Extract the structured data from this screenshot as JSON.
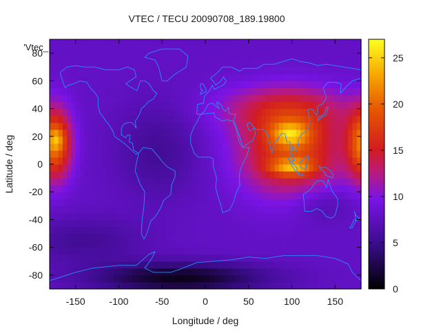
{
  "chart_data": {
    "type": "heatmap",
    "title": "VTEC / TECU 20090708_189.19800",
    "series_label": "'Vtec_",
    "xlabel": "Longitude / deg",
    "ylabel": "Latitude / deg",
    "xlim": [
      -180,
      180
    ],
    "ylim": [
      -90,
      90
    ],
    "xticks": [
      -150,
      -100,
      -50,
      0,
      50,
      100,
      150
    ],
    "yticks": [
      -80,
      -60,
      -40,
      -20,
      0,
      20,
      40,
      60,
      80
    ],
    "colorbar": {
      "range": [
        0,
        27
      ],
      "ticks": [
        0,
        5,
        10,
        15,
        20,
        25
      ],
      "palette": "black-purple-red-orange-yellow"
    },
    "background_level": 8,
    "grid_resolution_deg": 5,
    "features": [
      {
        "name": "east-hemisphere-crest",
        "lon": 100,
        "lat": 10,
        "lon_sigma": 42,
        "lat_sigma": 22,
        "amplitude": 10
      },
      {
        "name": "north-crest",
        "lon": 98,
        "lat": 22,
        "lon_sigma": 15,
        "lat_sigma": 6,
        "amplitude": 8
      },
      {
        "name": "south-crest",
        "lon": 100,
        "lat": -2,
        "lon_sigma": 18,
        "lat_sigma": 4,
        "amplitude": 8
      },
      {
        "name": "midlat-band",
        "lon": 90,
        "lat": 40,
        "lon_sigma": 55,
        "lat_sigma": 12,
        "amplitude": 5
      },
      {
        "name": "pacific-crest",
        "lon": -175,
        "lat": 15,
        "lon_sigma": 14,
        "lat_sigma": 18,
        "amplitude": 13
      },
      {
        "name": "pacific-crest-wrap",
        "lon": 185,
        "lat": 15,
        "lon_sigma": 14,
        "lat_sigma": 18,
        "amplitude": 13
      },
      {
        "name": "pacific-peak",
        "lon": -172,
        "lat": 18,
        "lon_sigma": 6,
        "lat_sigma": 5,
        "amplitude": 4
      },
      {
        "name": "antarctic-low",
        "lon": -30,
        "lat": -82,
        "lon_sigma": 70,
        "lat_sigma": 8,
        "amplitude": -7
      },
      {
        "name": "south-pacific-low",
        "lon": -140,
        "lat": -55,
        "lon_sigma": 50,
        "lat_sigma": 12,
        "amplitude": -2.5
      },
      {
        "name": "america-dark",
        "lon": -55,
        "lat": 10,
        "lon_sigma": 35,
        "lat_sigma": 25,
        "amplitude": -2.5
      },
      {
        "name": "australia-dip",
        "lon": 135,
        "lat": -28,
        "lon_sigma": 25,
        "lat_sigma": 10,
        "amplitude": -2
      }
    ],
    "coastlines": [
      [
        [
          -168,
          66
        ],
        [
          -160,
          70
        ],
        [
          -150,
          71
        ],
        [
          -140,
          70
        ],
        [
          -128,
          70
        ],
        [
          -115,
          68
        ],
        [
          -100,
          68
        ],
        [
          -90,
          70
        ],
        [
          -82,
          68
        ],
        [
          -80,
          63
        ],
        [
          -92,
          58
        ],
        [
          -85,
          55
        ],
        [
          -79,
          53
        ],
        [
          -75,
          60
        ],
        [
          -70,
          60
        ],
        [
          -65,
          58
        ],
        [
          -60,
          53
        ],
        [
          -56,
          51
        ],
        [
          -60,
          47
        ],
        [
          -66,
          45
        ],
        [
          -70,
          42
        ],
        [
          -74,
          40
        ],
        [
          -76,
          36
        ],
        [
          -81,
          31
        ],
        [
          -80,
          26
        ],
        [
          -82,
          28
        ],
        [
          -85,
          30
        ],
        [
          -89,
          30
        ],
        [
          -94,
          29
        ],
        [
          -97,
          26
        ],
        [
          -97,
          21
        ],
        [
          -92,
          19
        ],
        [
          -90,
          21
        ],
        [
          -87,
          21
        ],
        [
          -88,
          16
        ],
        [
          -84,
          15
        ],
        [
          -83,
          10
        ],
        [
          -80,
          9
        ],
        [
          -78,
          8
        ],
        [
          -80,
          7
        ],
        [
          -85,
          10
        ],
        [
          -92,
          14
        ],
        [
          -96,
          16
        ],
        [
          -105,
          20
        ],
        [
          -107,
          24
        ],
        [
          -112,
          29
        ],
        [
          -115,
          31
        ],
        [
          -117,
          33
        ],
        [
          -122,
          37
        ],
        [
          -124,
          42
        ],
        [
          -124,
          48
        ],
        [
          -127,
          51
        ],
        [
          -133,
          55
        ],
        [
          -137,
          59
        ],
        [
          -145,
          60
        ],
        [
          -152,
          58
        ],
        [
          -158,
          57
        ],
        [
          -162,
          55
        ],
        [
          -165,
          60
        ],
        [
          -168,
          66
        ]
      ],
      [
        [
          -77,
          8
        ],
        [
          -72,
          12
        ],
        [
          -62,
          11
        ],
        [
          -55,
          6
        ],
        [
          -50,
          2
        ],
        [
          -44,
          -2
        ],
        [
          -35,
          -5
        ],
        [
          -35,
          -9
        ],
        [
          -39,
          -15
        ],
        [
          -40,
          -22
        ],
        [
          -48,
          -26
        ],
        [
          -52,
          -32
        ],
        [
          -58,
          -38
        ],
        [
          -63,
          -41
        ],
        [
          -66,
          -47
        ],
        [
          -69,
          -52
        ],
        [
          -71,
          -54
        ],
        [
          -74,
          -50
        ],
        [
          -73,
          -40
        ],
        [
          -71,
          -30
        ],
        [
          -70,
          -20
        ],
        [
          -75,
          -15
        ],
        [
          -81,
          -5
        ],
        [
          -80,
          0
        ],
        [
          -77,
          8
        ]
      ],
      [
        [
          -50,
          60
        ],
        [
          -44,
          60
        ],
        [
          -35,
          65
        ],
        [
          -22,
          70
        ],
        [
          -20,
          78
        ],
        [
          -30,
          83
        ],
        [
          -50,
          83
        ],
        [
          -65,
          80
        ],
        [
          -70,
          77
        ],
        [
          -58,
          75
        ],
        [
          -54,
          70
        ],
        [
          -50,
          60
        ]
      ],
      [
        [
          -10,
          36
        ],
        [
          -9,
          43
        ],
        [
          -2,
          44
        ],
        [
          -1,
          49
        ],
        [
          5,
          53
        ],
        [
          8,
          57
        ],
        [
          10,
          54
        ],
        [
          14,
          55
        ],
        [
          21,
          57
        ],
        [
          24,
          60
        ],
        [
          21,
          63
        ],
        [
          18,
          60
        ],
        [
          12,
          57
        ],
        [
          10,
          59
        ],
        [
          6,
          62
        ],
        [
          14,
          66
        ],
        [
          20,
          70
        ],
        [
          30,
          70
        ],
        [
          40,
          67
        ],
        [
          44,
          69
        ],
        [
          60,
          69
        ],
        [
          68,
          72
        ],
        [
          80,
          72
        ],
        [
          100,
          76
        ],
        [
          110,
          74
        ],
        [
          120,
          73
        ],
        [
          130,
          71
        ],
        [
          140,
          72
        ],
        [
          160,
          70
        ],
        [
          170,
          69
        ],
        [
          180,
          68
        ]
      ],
      [
        [
          180,
          62
        ],
        [
          170,
          60
        ],
        [
          163,
          56
        ],
        [
          156,
          51
        ],
        [
          157,
          58
        ],
        [
          150,
          59
        ],
        [
          142,
          59
        ],
        [
          136,
          55
        ],
        [
          140,
          48
        ],
        [
          135,
          43
        ],
        [
          130,
          42
        ],
        [
          129,
          35
        ],
        [
          126,
          37
        ],
        [
          125,
          39
        ],
        [
          122,
          40
        ],
        [
          118,
          39
        ],
        [
          120,
          35
        ],
        [
          121,
          31
        ],
        [
          121,
          28
        ],
        [
          117,
          24
        ],
        [
          110,
          21
        ],
        [
          108,
          18
        ],
        [
          106,
          10
        ],
        [
          104,
          9
        ],
        [
          101,
          13
        ],
        [
          100,
          8
        ],
        [
          103,
          3
        ],
        [
          101,
          2
        ],
        [
          98,
          8
        ],
        [
          98,
          16
        ],
        [
          94,
          16
        ],
        [
          92,
          22
        ],
        [
          88,
          22
        ],
        [
          80,
          15
        ],
        [
          77,
          8
        ],
        [
          73,
          17
        ],
        [
          72,
          21
        ],
        [
          67,
          25
        ],
        [
          58,
          25
        ],
        [
          56,
          27
        ],
        [
          51,
          30
        ],
        [
          48,
          29
        ],
        [
          50,
          25
        ],
        [
          52,
          24
        ],
        [
          56,
          26
        ],
        [
          58,
          22
        ],
        [
          55,
          17
        ],
        [
          52,
          16
        ],
        [
          45,
          13
        ],
        [
          43,
          13
        ],
        [
          39,
          21
        ],
        [
          35,
          28
        ],
        [
          33,
          31
        ],
        [
          35,
          36
        ],
        [
          30,
          36
        ],
        [
          27,
          37
        ],
        [
          27,
          41
        ],
        [
          23,
          38
        ],
        [
          20,
          40
        ],
        [
          19,
          42
        ],
        [
          14,
          45
        ],
        [
          13,
          44
        ],
        [
          16,
          40
        ],
        [
          12,
          42
        ],
        [
          8,
          44
        ],
        [
          3,
          43
        ],
        [
          -1,
          38
        ],
        [
          -5,
          36
        ],
        [
          -10,
          36
        ]
      ],
      [
        [
          -5,
          36
        ],
        [
          10,
          37
        ],
        [
          11,
          34
        ],
        [
          20,
          31
        ],
        [
          25,
          32
        ],
        [
          32,
          31
        ],
        [
          34,
          28
        ],
        [
          37,
          22
        ],
        [
          39,
          16
        ],
        [
          43,
          12
        ],
        [
          51,
          12
        ],
        [
          48,
          6
        ],
        [
          43,
          0
        ],
        [
          40,
          -5
        ],
        [
          39,
          -10
        ],
        [
          40,
          -15
        ],
        [
          35,
          -22
        ],
        [
          33,
          -27
        ],
        [
          28,
          -33
        ],
        [
          20,
          -35
        ],
        [
          18,
          -30
        ],
        [
          14,
          -22
        ],
        [
          12,
          -17
        ],
        [
          13,
          -10
        ],
        [
          9,
          -1
        ],
        [
          9,
          4
        ],
        [
          5,
          5
        ],
        [
          -3,
          5
        ],
        [
          -8,
          5
        ],
        [
          -13,
          8
        ],
        [
          -17,
          15
        ],
        [
          -17,
          21
        ],
        [
          -13,
          27
        ],
        [
          -10,
          30
        ],
        [
          -6,
          35
        ],
        [
          -5,
          36
        ]
      ],
      [
        [
          113,
          -22
        ],
        [
          114,
          -26
        ],
        [
          115,
          -34
        ],
        [
          123,
          -34
        ],
        [
          129,
          -32
        ],
        [
          135,
          -34
        ],
        [
          140,
          -38
        ],
        [
          146,
          -39
        ],
        [
          150,
          -37
        ],
        [
          153,
          -30
        ],
        [
          153,
          -25
        ],
        [
          146,
          -19
        ],
        [
          142,
          -11
        ],
        [
          140,
          -17
        ],
        [
          136,
          -12
        ],
        [
          130,
          -12
        ],
        [
          126,
          -14
        ],
        [
          122,
          -18
        ],
        [
          113,
          -22
        ]
      ],
      [
        [
          -180,
          -84
        ],
        [
          -150,
          -78
        ],
        [
          -130,
          -75
        ],
        [
          -100,
          -73
        ],
        [
          -80,
          -73
        ],
        [
          -65,
          -65
        ],
        [
          -58,
          -63
        ],
        [
          -62,
          -68
        ],
        [
          -70,
          -75
        ],
        [
          -60,
          -78
        ],
        [
          -40,
          -78
        ],
        [
          -30,
          -76
        ],
        [
          -10,
          -71
        ],
        [
          10,
          -70
        ],
        [
          30,
          -69
        ],
        [
          50,
          -67
        ],
        [
          70,
          -68
        ],
        [
          90,
          -66
        ],
        [
          110,
          -66
        ],
        [
          130,
          -66
        ],
        [
          150,
          -68
        ],
        [
          165,
          -72
        ],
        [
          170,
          -78
        ],
        [
          180,
          -84
        ]
      ],
      [
        [
          -6,
          50
        ],
        [
          -3,
          51
        ],
        [
          1,
          52
        ],
        [
          0,
          55
        ],
        [
          -3,
          58
        ],
        [
          -5,
          58
        ],
        [
          -6,
          56
        ],
        [
          -5,
          54
        ],
        [
          -3,
          53
        ],
        [
          -5,
          52
        ],
        [
          -6,
          50
        ]
      ],
      [
        [
          130,
          31
        ],
        [
          133,
          33
        ],
        [
          135,
          34
        ],
        [
          139,
          35
        ],
        [
          141,
          38
        ],
        [
          142,
          41
        ],
        [
          140,
          41
        ],
        [
          138,
          37
        ],
        [
          135,
          35
        ],
        [
          131,
          34
        ],
        [
          130,
          31
        ]
      ],
      [
        [
          95,
          5
        ],
        [
          98,
          3
        ],
        [
          102,
          0
        ],
        [
          106,
          -3
        ],
        [
          106,
          -6
        ],
        [
          104,
          -5
        ],
        [
          101,
          -2
        ],
        [
          98,
          1
        ],
        [
          95,
          5
        ]
      ],
      [
        [
          106,
          -6
        ],
        [
          110,
          -7
        ],
        [
          114,
          -8
        ],
        [
          112,
          -8
        ],
        [
          108,
          -8
        ],
        [
          106,
          -6
        ]
      ],
      [
        [
          109,
          1
        ],
        [
          111,
          2
        ],
        [
          115,
          5
        ],
        [
          119,
          6
        ],
        [
          118,
          3
        ],
        [
          117,
          0
        ],
        [
          116,
          -4
        ],
        [
          112,
          -3
        ],
        [
          110,
          -2
        ],
        [
          109,
          1
        ]
      ],
      [
        [
          131,
          -1
        ],
        [
          135,
          -3
        ],
        [
          138,
          -2
        ],
        [
          141,
          -3
        ],
        [
          145,
          -5
        ],
        [
          148,
          -8
        ],
        [
          147,
          -10
        ],
        [
          143,
          -9
        ],
        [
          139,
          -8
        ],
        [
          137,
          -5
        ],
        [
          133,
          -4
        ],
        [
          131,
          -1
        ]
      ],
      [
        [
          172,
          -34
        ],
        [
          174,
          -37
        ],
        [
          176,
          -38
        ],
        [
          178,
          -39
        ],
        [
          175,
          -41
        ],
        [
          172,
          -40
        ],
        [
          169,
          -44
        ],
        [
          167,
          -46
        ],
        [
          170,
          -46
        ],
        [
          172,
          -43
        ],
        [
          174,
          -41
        ],
        [
          173,
          -35
        ],
        [
          172,
          -34
        ]
      ]
    ]
  }
}
